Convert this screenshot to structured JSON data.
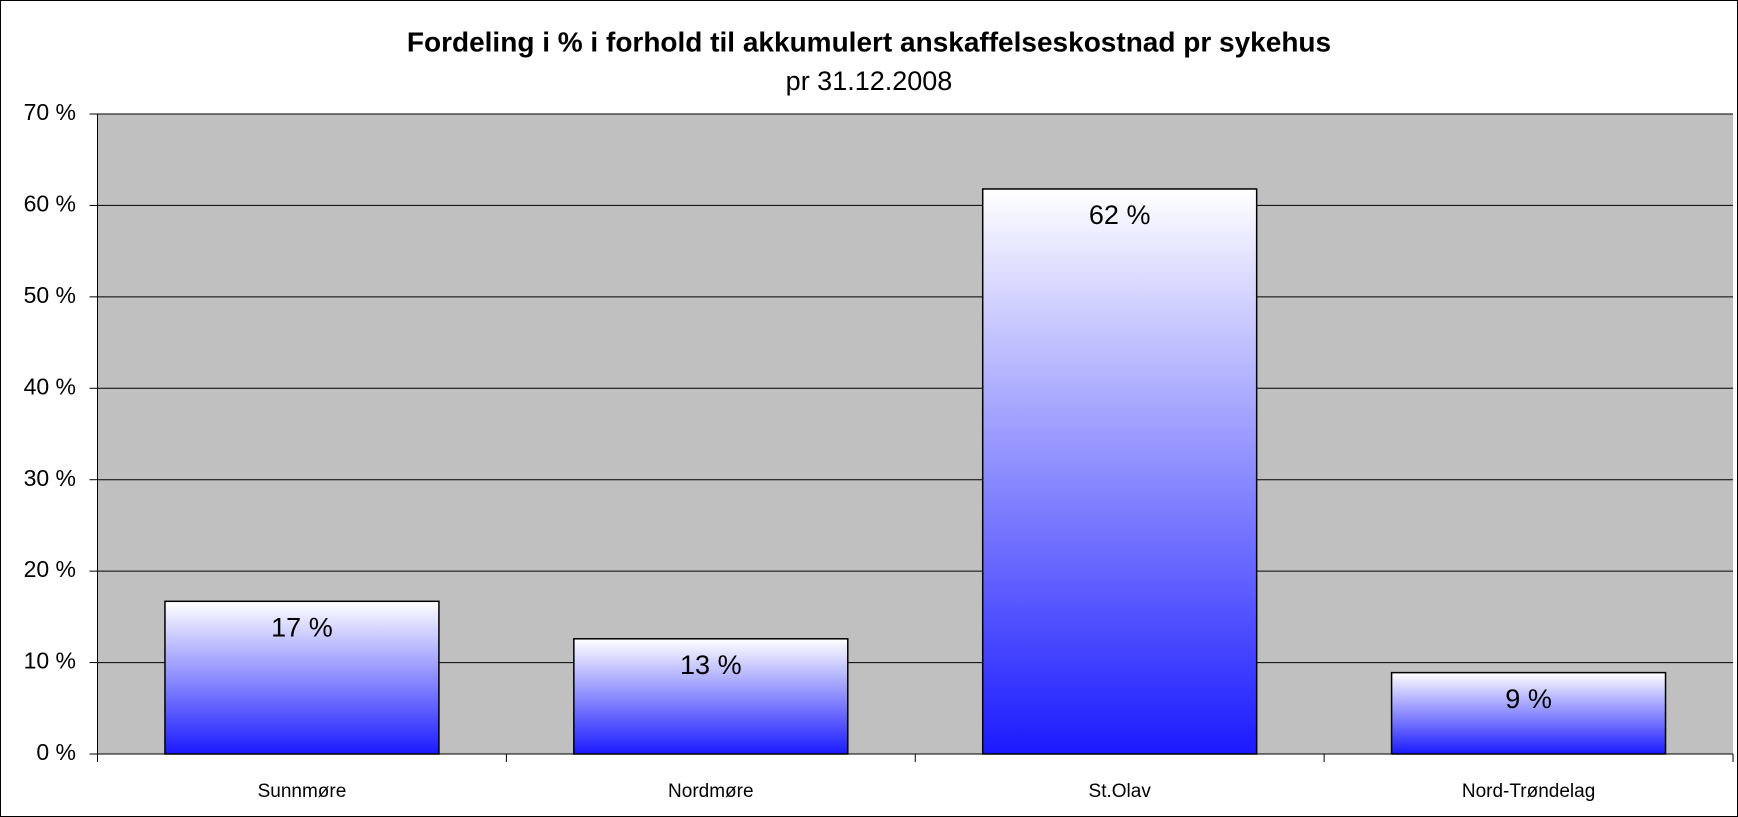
{
  "chart_data": {
    "type": "bar",
    "title": "Fordeling i % i forhold til akkumulert anskaffelseskostnad pr sykehus",
    "subtitle": "pr 31.12.2008",
    "categories": [
      "Sunnmøre",
      "Nordmøre",
      "St.Olav",
      "Nord-Trøndelag"
    ],
    "values": [
      16.7,
      12.6,
      61.8,
      8.9
    ],
    "value_labels": [
      "17 %",
      "13 %",
      "62 %",
      "9 %"
    ],
    "color": "#1a1aff",
    "ylim": [
      0,
      70
    ],
    "yticks": [
      {
        "value": 0,
        "label": "0 %"
      },
      {
        "value": 10,
        "label": "10 %"
      },
      {
        "value": 20,
        "label": "20 %"
      },
      {
        "value": 30,
        "label": "30 %"
      },
      {
        "value": 40,
        "label": "40 %"
      },
      {
        "value": 50,
        "label": "50 %"
      },
      {
        "value": 60,
        "label": "60 %"
      },
      {
        "value": 70,
        "label": "70 %"
      }
    ],
    "grid": true
  }
}
